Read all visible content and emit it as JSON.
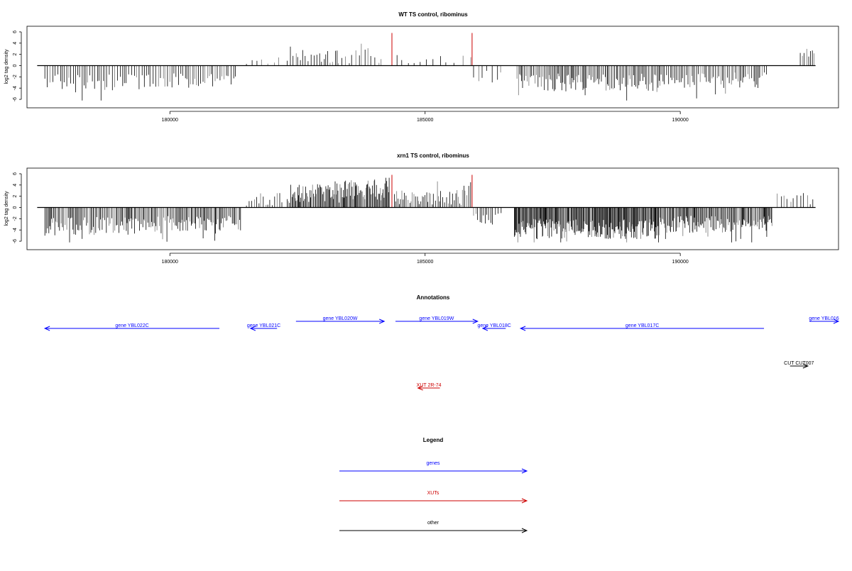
{
  "colors": {
    "genes": "#0000ff",
    "xuts": "#cc0000",
    "other": "#000000",
    "density": "#000000",
    "highlight": "#cc0000"
  },
  "chart_data": [
    {
      "type": "bar",
      "title": "WT TS control, ribominus",
      "ylabel": "log2 tag density",
      "xlim": [
        177200,
        193100
      ],
      "ylim": [
        -7,
        6.5
      ],
      "x_ticks": [
        180000,
        185000,
        190000
      ],
      "x_tick_labels": [
        "180000",
        "185000",
        "190000"
      ],
      "y_ticks": [
        -6,
        -4,
        -2,
        0,
        2,
        4,
        6
      ],
      "y_tick_labels": [
        "-6",
        "-4",
        "-2",
        "0",
        "2",
        "4",
        "6"
      ],
      "baseline_range": [
        177400,
        192650
      ],
      "segments": [
        {
          "from": 177550,
          "to": 179500,
          "sign": -1,
          "step": 45,
          "amp": 3.0,
          "var": 1.5
        },
        {
          "from": 179500,
          "to": 181300,
          "sign": -1,
          "step": 45,
          "amp": 2.7,
          "var": 1.3
        },
        {
          "from": 181500,
          "to": 182200,
          "sign": 1,
          "step": 120,
          "amp": 1.0,
          "var": 1.0
        },
        {
          "from": 182300,
          "to": 183300,
          "sign": 1,
          "step": 45,
          "amp": 2.0,
          "var": 1.6
        },
        {
          "from": 183300,
          "to": 184150,
          "sign": 1,
          "step": 60,
          "amp": 1.8,
          "var": 1.5
        },
        {
          "from": 184450,
          "to": 185900,
          "sign": 1,
          "step": 130,
          "amp": 0.9,
          "var": 1.0
        },
        {
          "from": 185950,
          "to": 186500,
          "sign": -1,
          "step": 80,
          "amp": 1.8,
          "var": 1.2
        },
        {
          "from": 186800,
          "to": 189600,
          "sign": -1,
          "step": 28,
          "amp": 3.0,
          "var": 1.6
        },
        {
          "from": 189600,
          "to": 191700,
          "sign": -1,
          "step": 35,
          "amp": 2.6,
          "var": 1.4
        },
        {
          "from": 192350,
          "to": 192650,
          "sign": 1,
          "step": 45,
          "amp": 2.0,
          "var": 1.0
        }
      ],
      "highlights": [
        {
          "x": 184350,
          "y": 5.8
        },
        {
          "x": 185920,
          "y": 5.8
        }
      ]
    },
    {
      "type": "bar",
      "title": "xrn1 TS control, ribominus",
      "ylabel": "log2 tag density",
      "xlim": [
        177200,
        193100
      ],
      "ylim": [
        -7,
        6.5
      ],
      "x_ticks": [
        180000,
        185000,
        190000
      ],
      "x_tick_labels": [
        "180000",
        "185000",
        "190000"
      ],
      "y_ticks": [
        -6,
        -4,
        -2,
        0,
        2,
        4,
        6
      ],
      "y_tick_labels": [
        "-6",
        "-4",
        "-2",
        "0",
        "2",
        "4",
        "6"
      ],
      "baseline_range": [
        177400,
        192650
      ],
      "segments": [
        {
          "from": 177550,
          "to": 179500,
          "sign": -1,
          "step": 25,
          "amp": 3.3,
          "var": 1.6
        },
        {
          "from": 179500,
          "to": 181400,
          "sign": -1,
          "step": 25,
          "amp": 2.9,
          "var": 1.4
        },
        {
          "from": 181500,
          "to": 182200,
          "sign": 1,
          "step": 40,
          "amp": 1.4,
          "var": 1.2
        },
        {
          "from": 182300,
          "to": 183400,
          "sign": 1,
          "step": 18,
          "amp": 2.6,
          "var": 1.8
        },
        {
          "from": 183400,
          "to": 184300,
          "sign": 1,
          "step": 18,
          "amp": 3.0,
          "var": 1.8
        },
        {
          "from": 184400,
          "to": 185900,
          "sign": 1,
          "step": 30,
          "amp": 1.8,
          "var": 1.4
        },
        {
          "from": 185950,
          "to": 186500,
          "sign": -1,
          "step": 45,
          "amp": 2.0,
          "var": 1.3
        },
        {
          "from": 186750,
          "to": 189600,
          "sign": -1,
          "step": 14,
          "amp": 3.8,
          "var": 1.8
        },
        {
          "from": 189600,
          "to": 191800,
          "sign": -1,
          "step": 18,
          "amp": 3.0,
          "var": 1.5
        },
        {
          "from": 191900,
          "to": 192650,
          "sign": 1,
          "step": 70,
          "amp": 1.6,
          "var": 1.2
        }
      ],
      "highlights": [
        {
          "x": 184350,
          "y": 5.8
        },
        {
          "x": 185920,
          "y": 5.8
        }
      ]
    }
  ],
  "annotations": {
    "title": "Annotations",
    "features": [
      {
        "label": "gene YBL022C",
        "start": 177550,
        "end": 180970,
        "strand": "-",
        "type": "genes",
        "row": 1
      },
      {
        "label": "gene YBL021C",
        "start": 181580,
        "end": 182100,
        "strand": "-",
        "type": "genes",
        "row": 1
      },
      {
        "label": "gene YBL020W",
        "start": 182470,
        "end": 184200,
        "strand": "+",
        "type": "genes",
        "row": 0
      },
      {
        "label": "gene YBL019W",
        "start": 184420,
        "end": 186030,
        "strand": "+",
        "type": "genes",
        "row": 0
      },
      {
        "label": "gene YBL018C",
        "start": 186130,
        "end": 186580,
        "strand": "-",
        "type": "genes",
        "row": 1
      },
      {
        "label": "gene YBL017C",
        "start": 186870,
        "end": 191640,
        "strand": "-",
        "type": "genes",
        "row": 1
      },
      {
        "label": "gene YBL016",
        "start": 192530,
        "end": 193100,
        "strand": "+",
        "type": "genes",
        "row": 0
      },
      {
        "label": "CUT CUT007",
        "start": 192150,
        "end": 192500,
        "strand": "+",
        "type": "other",
        "row": 2
      },
      {
        "label": "XUT 2R-74",
        "start": 184860,
        "end": 185290,
        "strand": "-",
        "type": "xuts",
        "row": 3
      }
    ]
  },
  "legend": {
    "title": "Legend",
    "items": [
      {
        "label": "genes",
        "type": "genes"
      },
      {
        "label": "XUTs",
        "type": "xuts"
      },
      {
        "label": "other",
        "type": "other"
      }
    ]
  }
}
